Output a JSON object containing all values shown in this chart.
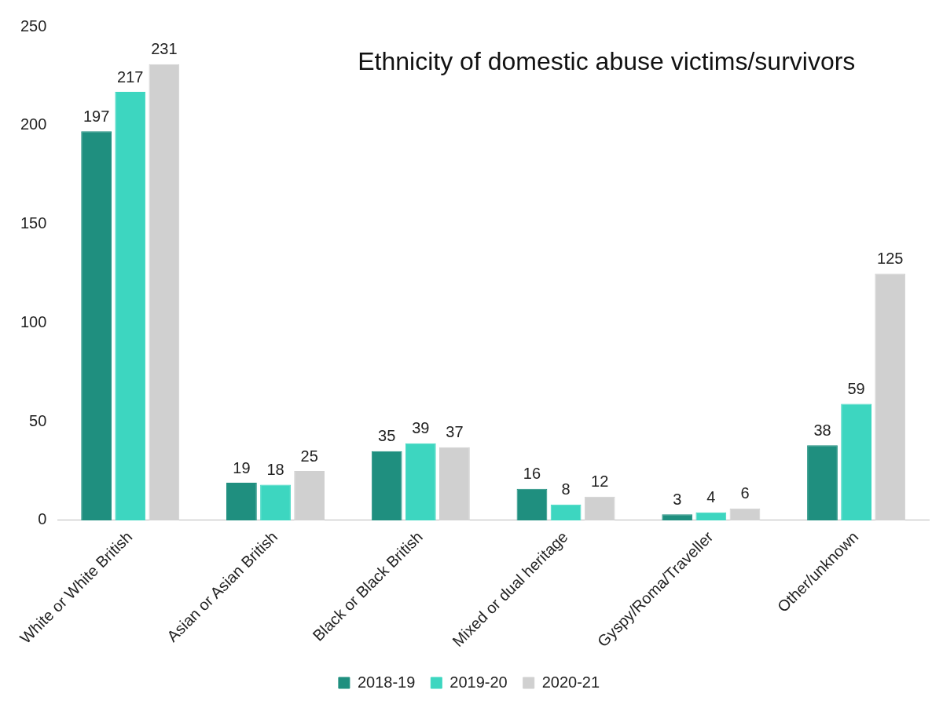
{
  "chart_data": {
    "type": "bar",
    "title": "Ethnicity of domestic abuse victims/survivors",
    "categories": [
      "White or White British",
      "Asian or Asian British",
      "Black or Black British",
      "Mixed or dual heritage",
      "Gyspy/Roma/Traveller",
      "Other/unknown"
    ],
    "series": [
      {
        "name": "2018-19",
        "color": "#1f8f7f",
        "values": [
          197,
          19,
          35,
          16,
          3,
          38
        ]
      },
      {
        "name": "2019-20",
        "color": "#3dd6c0",
        "values": [
          217,
          18,
          39,
          8,
          4,
          59
        ]
      },
      {
        "name": "2020-21",
        "color": "#d0d0d0",
        "values": [
          231,
          25,
          37,
          12,
          6,
          125
        ]
      }
    ],
    "ylim": [
      0,
      250
    ],
    "yticks": [
      0,
      50,
      100,
      150,
      200,
      250
    ],
    "grid": false,
    "legend": "bottom",
    "data_labels": true
  }
}
